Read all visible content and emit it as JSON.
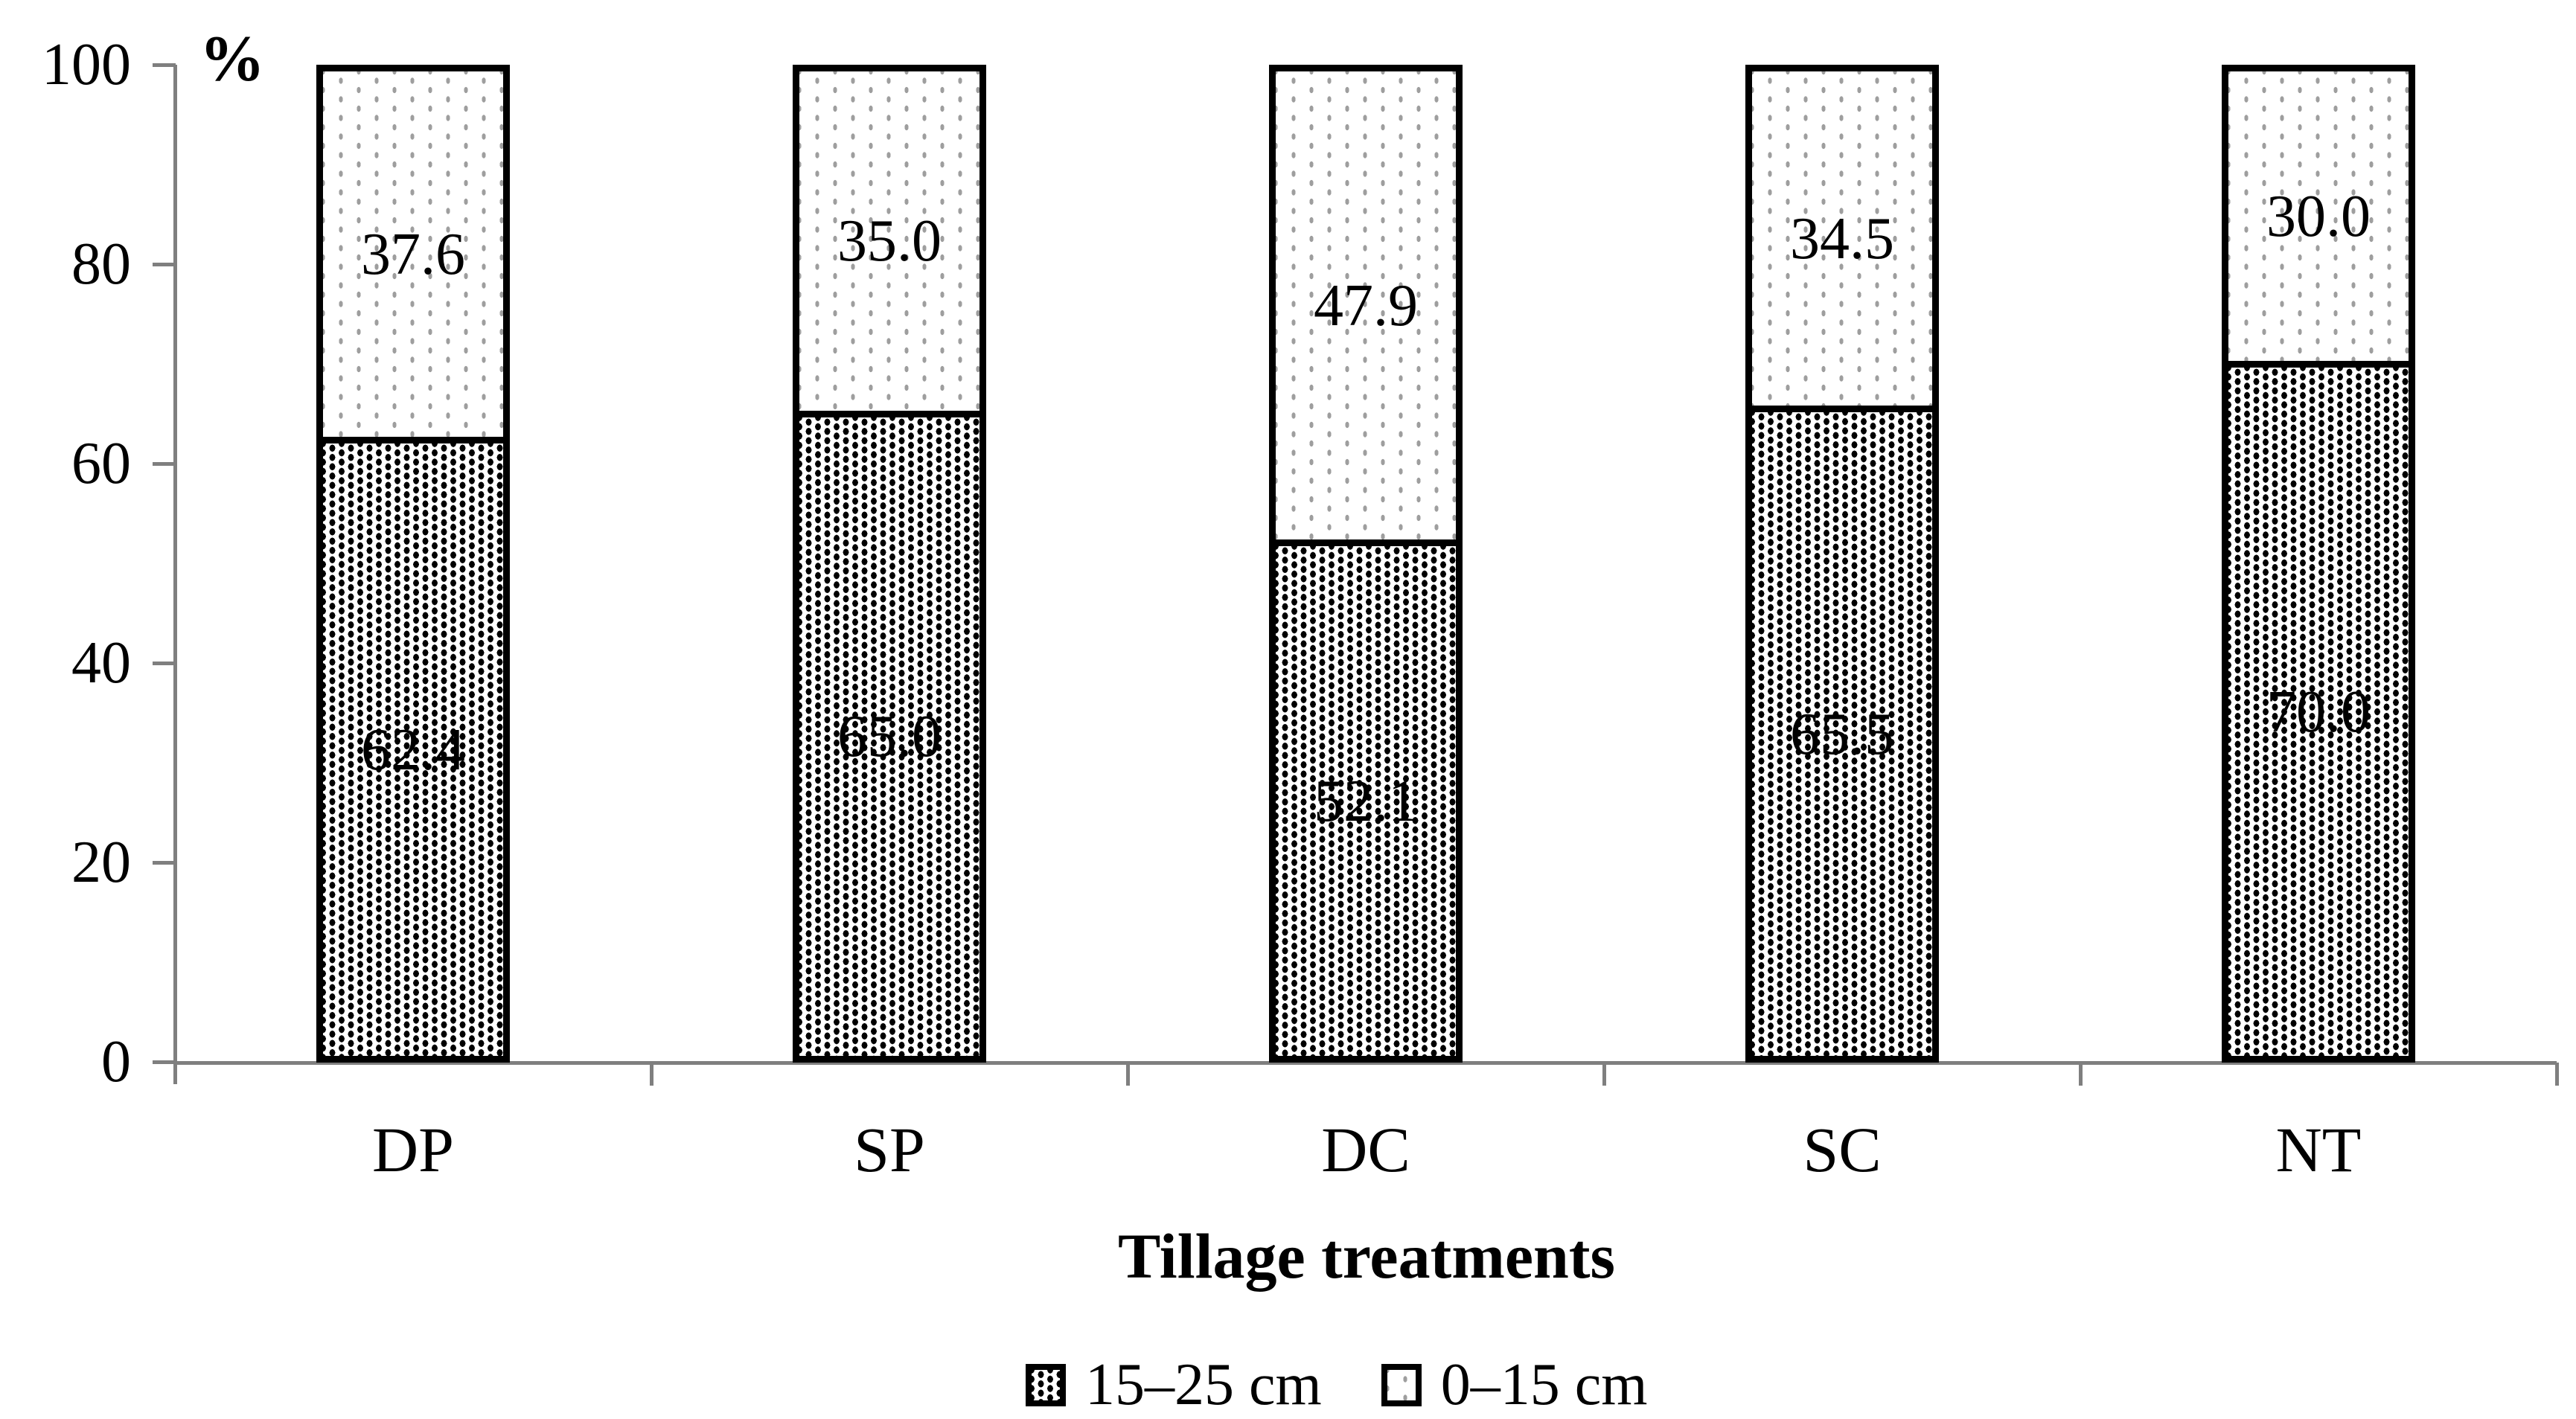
{
  "chart_data": {
    "type": "bar",
    "stacked": true,
    "orientation": "vertical",
    "title": "",
    "xlabel": "Tillage treatments",
    "ylabel": "%",
    "ylim": [
      0,
      100
    ],
    "yticks": [
      "0",
      "20",
      "40",
      "60",
      "80",
      "100"
    ],
    "grid": false,
    "legend_position": "bottom",
    "categories": [
      "DP",
      "SP",
      "DC",
      "SC",
      "NT"
    ],
    "series": [
      {
        "name": "15–25 cm",
        "pattern": "dense-black-dots",
        "values": [
          62.4,
          65.0,
          52.1,
          65.5,
          70.0
        ],
        "labels": [
          "62.4",
          "65.0",
          "52.1",
          "65.5",
          "70.0"
        ]
      },
      {
        "name": "0–15 cm",
        "pattern": "sparse-gray-dots",
        "values": [
          37.6,
          35.0,
          47.9,
          34.5,
          30.0
        ],
        "labels": [
          "37.6",
          "35.0",
          "47.9",
          "34.5",
          "30.0"
        ]
      }
    ]
  },
  "colors": {
    "axis": "#7f7f7f",
    "bar_border": "#000000",
    "dense_dot": "#000000",
    "light_dot": "#9e9e9e",
    "text": "#000000",
    "background": "#ffffff"
  }
}
